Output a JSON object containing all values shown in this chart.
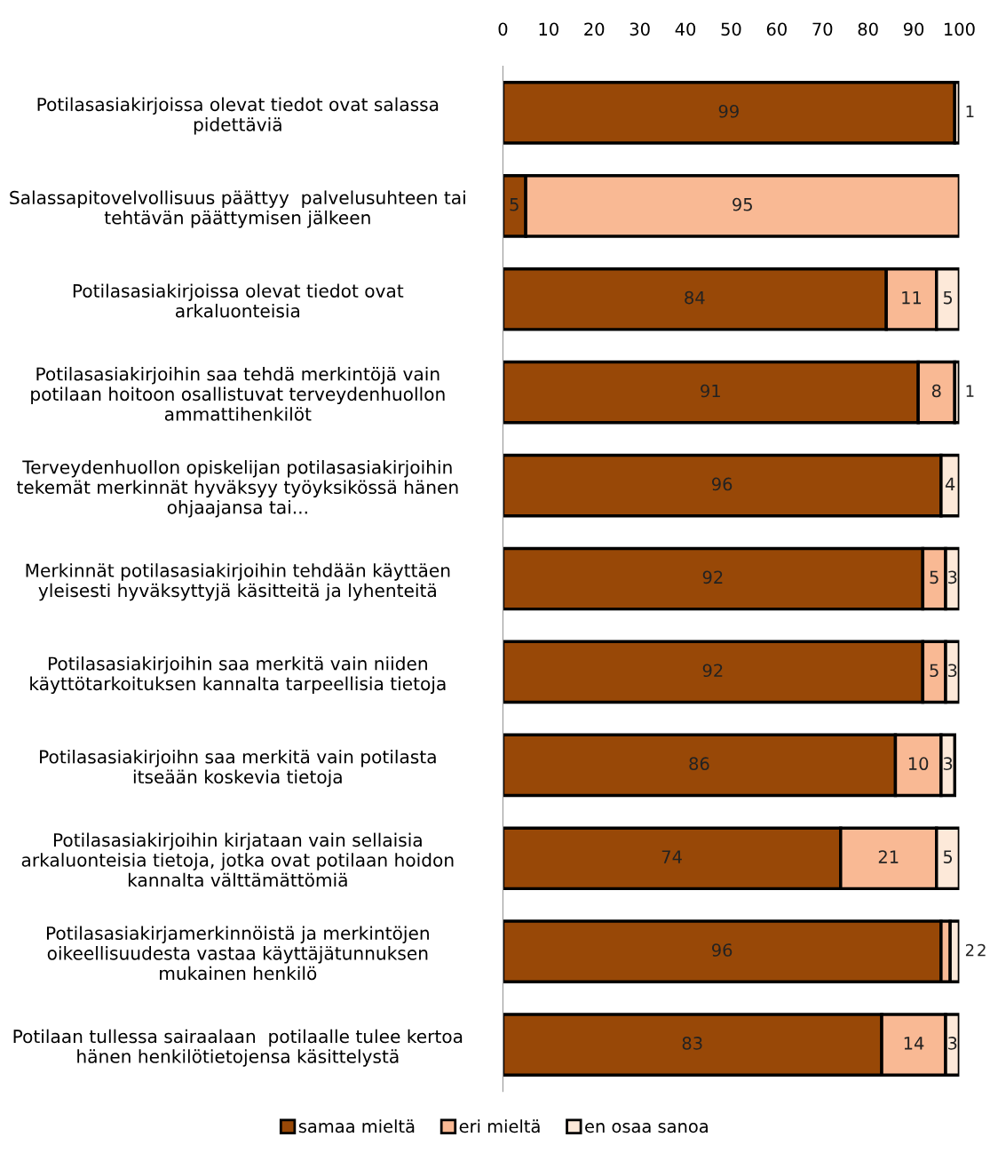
{
  "chart_data": {
    "type": "bar",
    "orientation": "horizontal",
    "stacked": true,
    "data_labels": true,
    "legend": "bottom",
    "grid": false,
    "categories": [
      "Potilasasiakirjoissa olevat tiedot ovat salassa\npidettäviä",
      "Salassapitovelvollisuus päättyy  palvelusuhteen tai\ntehtävän päättymisen jälkeen",
      "Potilasasiakirjoissa olevat tiedot ovat\narkaluonteisia",
      "Potilasasiakirjoihin saa tehdä merkintöjä vain\npotilaan hoitoon osallistuvat terveydenhuollon\nammattihenkilöt",
      "Terveydenhuollon opiskelijan potilasasiakirjoihin\ntekemät merkinnät hyväksyy työyksikössä hänen\nohjaajansa tai...",
      "Merkinnät potilasasiakirjoihin tehdään käyttäen\nyleisesti hyväksyttyjä käsitteitä ja lyhenteitä",
      "Potilasasiakirjoihin saa merkitä vain niiden\nkäyttötarkoituksen kannalta tarpeellisia tietoja",
      "Potilasasiakirjoihn saa merkitä vain potilasta\nitseään koskevia tietoja",
      "Potilasasiakirjoihin kirjataan vain sellaisia\narkaluonteisia tietoja, jotka ovat potilaan hoidon\nkannalta välttämättömiä",
      "Potilasasiakirjamerkinnöistä ja merkintöjen\noikeellisuudesta vastaa käyttäjätunnuksen\nmukainen henkilö",
      "Potilaan tullessa sairaalaan  potilaalle tulee kertoa\nhänen henkilötietojensa käsittelystä"
    ],
    "series": [
      {
        "name": "samaa mieltä",
        "color": "#984807",
        "values": [
          99,
          5,
          84,
          91,
          96,
          92,
          92,
          86,
          74,
          96,
          83
        ]
      },
      {
        "name": "eri mieltä",
        "color": "#f9b994",
        "values": [
          null,
          95,
          11,
          8,
          null,
          5,
          5,
          10,
          21,
          2,
          14
        ]
      },
      {
        "name": "en osaa sanoa",
        "color": "#fde9d9",
        "values": [
          1,
          null,
          5,
          1,
          4,
          3,
          3,
          3,
          5,
          2,
          3
        ]
      }
    ],
    "xlim": [
      0,
      100
    ],
    "xticks": [
      0,
      10,
      20,
      30,
      40,
      50,
      60,
      70,
      80,
      90,
      100
    ]
  }
}
